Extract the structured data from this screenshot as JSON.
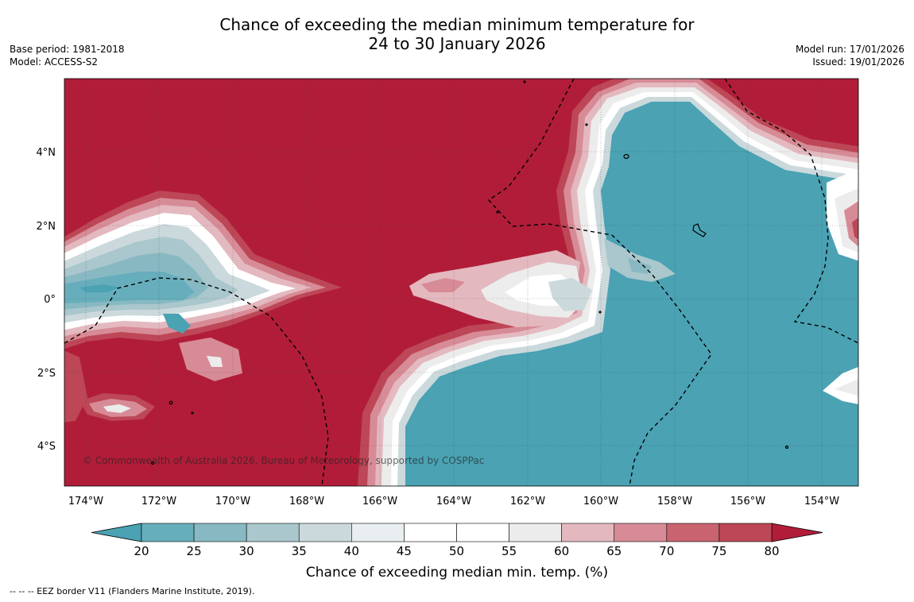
{
  "header": {
    "title_line1": "Chance of exceeding the median minimum temperature for",
    "title_line2": "24 to 30 January 2026",
    "base_period": "Base period: 1981-2018",
    "model": "Model: ACCESS-S2",
    "model_run": "Model run: 17/01/2026",
    "issued": "Issued: 19/01/2026"
  },
  "map": {
    "lon_labels": [
      "174°W",
      "172°W",
      "170°W",
      "168°W",
      "166°W",
      "164°W",
      "162°W",
      "160°W",
      "158°W",
      "156°W",
      "154°W"
    ],
    "lat_labels": [
      "4°N",
      "2°N",
      "0°",
      "2°S",
      "4°S"
    ],
    "copyright": "© Commonwealth of Australia 2026, Bureau of Meteorology, supported by COSPPac"
  },
  "legend": {
    "ticks": [
      "20",
      "25",
      "30",
      "35",
      "40",
      "45",
      "50",
      "55",
      "60",
      "65",
      "70",
      "75",
      "80"
    ],
    "title": "Chance of exceeding median min. temp. (%)",
    "colors": [
      "#4aa2b3",
      "#67aebc",
      "#88b9c3",
      "#a9c7cc",
      "#cbd9dc",
      "#e9eff0",
      "#ffffff",
      "#ffffff",
      "#ececec",
      "#e3b9bf",
      "#d78b96",
      "#c8636f",
      "#bd4756",
      "#b11d39"
    ]
  },
  "footer": {
    "eez_note": "--  --  -- EEZ border V11 (Flanders Marine Institute, 2019)."
  }
}
